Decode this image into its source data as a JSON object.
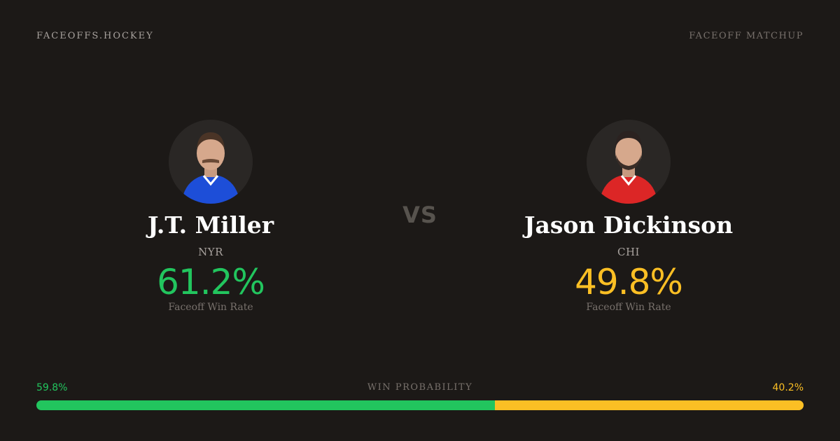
{
  "header": {
    "brand": "FACEOFFS.HOCKEY",
    "right_label": "FACEOFF MATCHUP"
  },
  "players": [
    {
      "name": "J.T. Miller",
      "team": "NYR",
      "win_rate": "61.2%",
      "win_rate_label": "Faceoff Win Rate",
      "color": "#22c55e",
      "jersey_color": "#1d4ed8"
    },
    {
      "name": "Jason Dickinson",
      "team": "CHI",
      "win_rate": "49.8%",
      "win_rate_label": "Faceoff Win Rate",
      "color": "#fbbf24",
      "jersey_color": "#dc2626"
    }
  ],
  "vs_label": "VS",
  "win_probability": {
    "title": "WIN PROBABILITY",
    "left_label": "59.8%",
    "right_label": "40.2%",
    "left_fraction": 0.598,
    "right_fraction": 0.402
  },
  "icons": [
    "player-headshot-icon"
  ]
}
